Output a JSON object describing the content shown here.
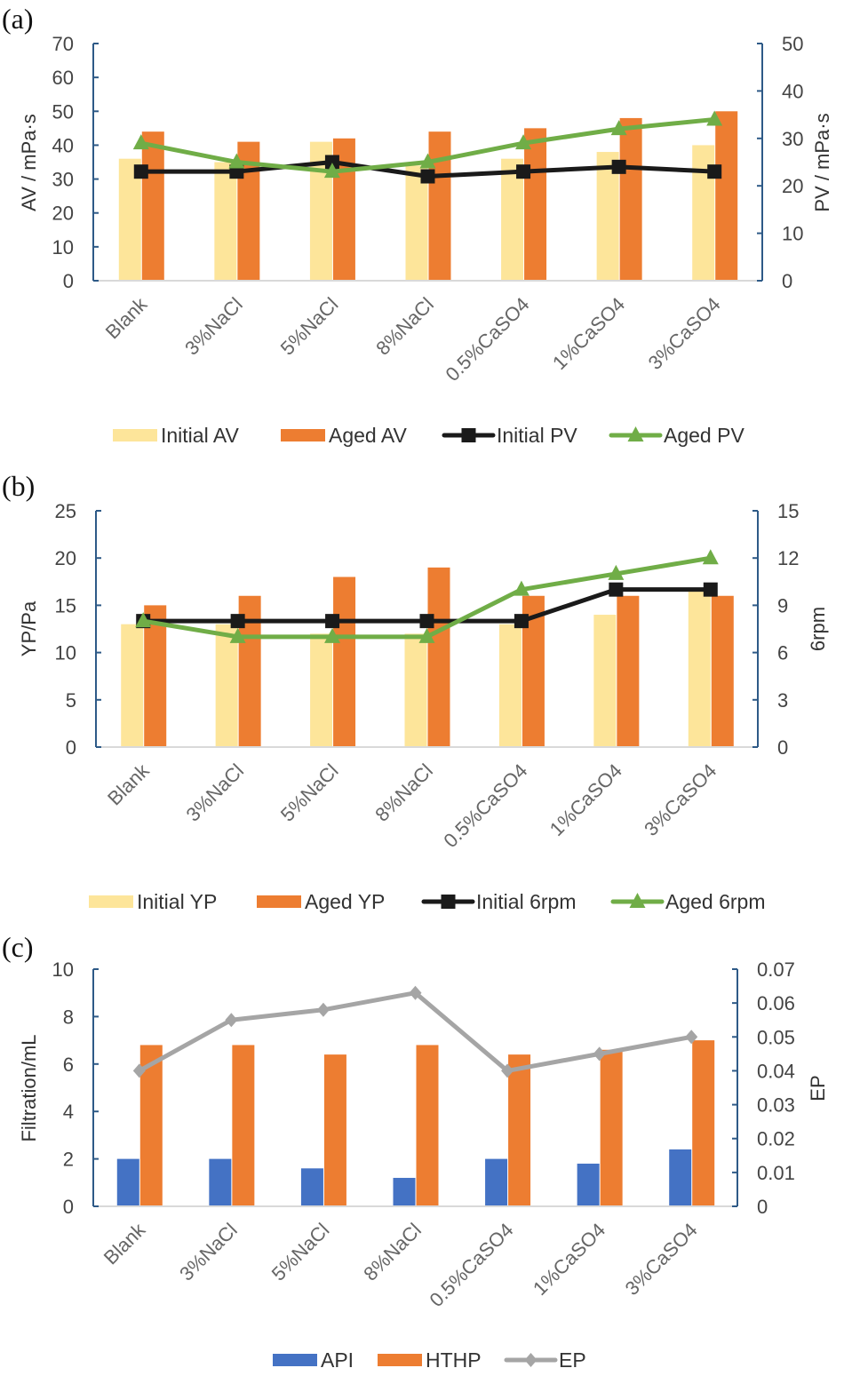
{
  "chart_data": [
    {
      "panel_label": "(a)",
      "type": "bar+line",
      "categories": [
        "Blank",
        "3%NaCl",
        "5%NaCl",
        "8%NaCl",
        "0.5%CaSO4",
        "1%CaSO4",
        "3%CaSO4"
      ],
      "ylabel": "AV / mPa·s",
      "y2label": "PV / mPa·s",
      "ylim": [
        0,
        70
      ],
      "yticks": [
        0,
        10,
        20,
        30,
        40,
        50,
        60,
        70
      ],
      "y2lim": [
        0,
        50
      ],
      "y2ticks": [
        0,
        10,
        20,
        30,
        40,
        50
      ],
      "grid": false,
      "legend": "bottom",
      "bars": [
        {
          "name": "Initial AV",
          "color": "#fde59a",
          "values": [
            36,
            35,
            41,
            34,
            36,
            38,
            40
          ]
        },
        {
          "name": "Aged AV",
          "color": "#ed7d31",
          "values": [
            44,
            41,
            42,
            44,
            45,
            48,
            50
          ]
        }
      ],
      "lines": [
        {
          "name": "Initial PV",
          "color": "#1a1a1a",
          "marker": "square",
          "axis": "right",
          "values": [
            23,
            23,
            25,
            22,
            23,
            24,
            23
          ]
        },
        {
          "name": "Aged PV",
          "color": "#70ad47",
          "marker": "triangle",
          "axis": "right",
          "values": [
            29,
            25,
            23,
            25,
            29,
            32,
            34
          ]
        }
      ]
    },
    {
      "panel_label": "(b)",
      "type": "bar+line",
      "categories": [
        "Blank",
        "3%NaCl",
        "5%NaCl",
        "8%NaCl",
        "0.5%CaSO4",
        "1%CaSO4",
        "3%CaSO4"
      ],
      "ylabel": "YP/Pa",
      "y2label": "6rpm",
      "ylim": [
        0,
        25
      ],
      "yticks": [
        0,
        5,
        10,
        15,
        20,
        25
      ],
      "y2lim": [
        0,
        15
      ],
      "y2ticks": [
        0,
        3,
        6,
        9,
        12,
        15
      ],
      "grid": false,
      "legend": "bottom",
      "bars": [
        {
          "name": "Initial YP",
          "color": "#fde59a",
          "values": [
            13,
            13,
            12,
            12,
            13,
            14,
            16.5
          ]
        },
        {
          "name": "Aged YP",
          "color": "#ed7d31",
          "values": [
            15,
            16,
            18,
            19,
            16,
            16,
            16
          ]
        }
      ],
      "lines": [
        {
          "name": "Initial 6rpm",
          "color": "#1a1a1a",
          "marker": "square",
          "axis": "right",
          "values": [
            8,
            8,
            8,
            8,
            8,
            10,
            10
          ]
        },
        {
          "name": "Aged 6rpm",
          "color": "#70ad47",
          "marker": "triangle",
          "axis": "right",
          "values": [
            8,
            7,
            7,
            7,
            10,
            11,
            12
          ]
        }
      ]
    },
    {
      "panel_label": "(c)",
      "type": "bar+line",
      "categories": [
        "Blank",
        "3%NaCl",
        "5%NaCl",
        "8%NaCl",
        "0.5%CaSO4",
        "1%CaSO4",
        "3%CaSO4"
      ],
      "ylabel": "Filtration/mL",
      "y2label": "EP",
      "ylim": [
        0,
        10
      ],
      "yticks": [
        0,
        2,
        4,
        6,
        8,
        10
      ],
      "y2lim": [
        0,
        0.07
      ],
      "y2ticks": [
        "0",
        "0.01",
        "0.02",
        "0.03",
        "0.04",
        "0.05",
        "0.06",
        "0.07"
      ],
      "grid": false,
      "legend": "bottom",
      "bars": [
        {
          "name": "API",
          "color": "#4472c4",
          "values": [
            2,
            2,
            1.6,
            1.2,
            2,
            1.8,
            2.4
          ]
        },
        {
          "name": "HTHP",
          "color": "#ed7d31",
          "values": [
            6.8,
            6.8,
            6.4,
            6.8,
            6.4,
            6.6,
            7.0
          ]
        }
      ],
      "lines": [
        {
          "name": "EP",
          "color": "#a5a5a5",
          "marker": "diamond",
          "axis": "right",
          "values": [
            0.04,
            0.055,
            0.058,
            0.063,
            0.04,
            0.045,
            0.05
          ]
        }
      ]
    }
  ]
}
